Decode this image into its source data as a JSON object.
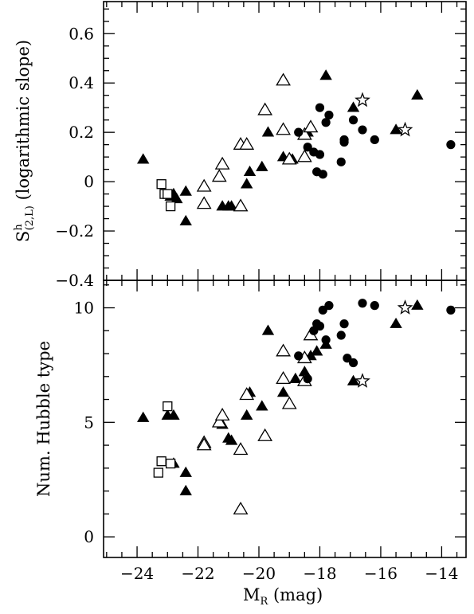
{
  "chart_data": {
    "type": "scatter",
    "shared_x": {
      "label": "M",
      "label_sub": "R",
      "label_unit": " (mag)",
      "range": [
        -25.1,
        -13.2
      ],
      "ticks": [
        -24,
        -22,
        -20,
        -18,
        -16,
        -14
      ],
      "tick_labels": [
        "−24",
        "−22",
        "−20",
        "−18",
        "−16",
        "−14"
      ]
    },
    "panels": [
      {
        "ylabel_main": "S",
        "ylabel_sup": "h",
        "ylabel_sub": "(2,L)",
        "ylabel_rest": " (logarithmic slope)",
        "yrange": [
          -0.4,
          0.73
        ],
        "yticks": [
          -0.4,
          -0.2,
          0,
          0.2,
          0.4,
          0.6
        ],
        "ytick_labels": [
          "−0.4",
          "−0.2",
          "0",
          "0.2",
          "0.4",
          "0.6"
        ],
        "series": [
          {
            "marker": "filled-triangle",
            "points": [
              [
                -23.8,
                0.09
              ],
              [
                -22.8,
                -0.05
              ],
              [
                -22.9,
                -0.06
              ],
              [
                -22.7,
                -0.07
              ],
              [
                -22.4,
                -0.04
              ],
              [
                -22.4,
                -0.16
              ],
              [
                -21.2,
                -0.1
              ],
              [
                -21.0,
                -0.1
              ],
              [
                -20.9,
                -0.1
              ],
              [
                -20.4,
                -0.01
              ],
              [
                -20.3,
                0.04
              ],
              [
                -19.9,
                0.06
              ],
              [
                -19.7,
                0.2
              ],
              [
                -19.2,
                0.1
              ],
              [
                -18.9,
                0.09
              ],
              [
                -18.4,
                0.2
              ],
              [
                -17.8,
                0.43
              ],
              [
                -16.9,
                0.3
              ],
              [
                -15.5,
                0.21
              ],
              [
                -14.8,
                0.35
              ]
            ]
          },
          {
            "marker": "open-triangle",
            "points": [
              [
                -21.8,
                -0.02
              ],
              [
                -21.8,
                -0.09
              ],
              [
                -21.3,
                0.02
              ],
              [
                -21.2,
                0.07
              ],
              [
                -20.6,
                0.15
              ],
              [
                -20.4,
                0.15
              ],
              [
                -20.6,
                -0.1
              ],
              [
                -19.8,
                0.29
              ],
              [
                -19.2,
                0.21
              ],
              [
                -19.2,
                0.41
              ],
              [
                -19.0,
                0.09
              ],
              [
                -18.5,
                0.1
              ],
              [
                -18.5,
                0.19
              ],
              [
                -18.3,
                0.22
              ]
            ]
          },
          {
            "marker": "filled-circle",
            "points": [
              [
                -18.7,
                0.2
              ],
              [
                -18.4,
                0.14
              ],
              [
                -18.2,
                0.12
              ],
              [
                -18.1,
                0.04
              ],
              [
                -18.0,
                0.3
              ],
              [
                -17.9,
                0.03
              ],
              [
                -17.8,
                0.24
              ],
              [
                -17.7,
                0.27
              ],
              [
                -17.3,
                0.08
              ],
              [
                -17.2,
                0.17
              ],
              [
                -17.2,
                0.16
              ],
              [
                -16.9,
                0.25
              ],
              [
                -16.6,
                0.21
              ],
              [
                -16.2,
                0.17
              ],
              [
                -13.7,
                0.15
              ],
              [
                -18.0,
                0.11
              ]
            ]
          },
          {
            "marker": "open-square",
            "points": [
              [
                -23.2,
                -0.01
              ],
              [
                -23.1,
                -0.05
              ],
              [
                -23.0,
                -0.05
              ],
              [
                -22.9,
                -0.1
              ]
            ]
          },
          {
            "marker": "open-star",
            "points": [
              [
                -16.6,
                0.33
              ],
              [
                -15.2,
                0.21
              ]
            ]
          }
        ]
      },
      {
        "ylabel": "Num. Hubble type",
        "yrange": [
          -0.9,
          11.2
        ],
        "yticks": [
          0,
          5,
          10
        ],
        "ytick_labels": [
          "0",
          "5",
          "10"
        ],
        "series": [
          {
            "marker": "filled-triangle",
            "points": [
              [
                -23.8,
                5.2
              ],
              [
                -23.0,
                5.3
              ],
              [
                -22.8,
                5.3
              ],
              [
                -22.8,
                3.2
              ],
              [
                -22.4,
                2.8
              ],
              [
                -22.4,
                2.0
              ],
              [
                -21.2,
                4.9
              ],
              [
                -21.0,
                4.3
              ],
              [
                -20.9,
                4.2
              ],
              [
                -20.4,
                5.3
              ],
              [
                -20.3,
                6.3
              ],
              [
                -19.9,
                5.7
              ],
              [
                -19.7,
                9.0
              ],
              [
                -19.2,
                6.3
              ],
              [
                -18.8,
                6.9
              ],
              [
                -18.5,
                7.2
              ],
              [
                -18.3,
                7.9
              ],
              [
                -18.1,
                8.1
              ],
              [
                -17.8,
                8.4
              ],
              [
                -16.9,
                6.8
              ],
              [
                -15.5,
                9.3
              ],
              [
                -14.8,
                10.1
              ]
            ]
          },
          {
            "marker": "open-triangle",
            "points": [
              [
                -21.8,
                4.1
              ],
              [
                -21.8,
                4.0
              ],
              [
                -21.3,
                5.0
              ],
              [
                -21.2,
                5.3
              ],
              [
                -20.6,
                3.8
              ],
              [
                -20.6,
                1.2
              ],
              [
                -20.4,
                6.2
              ],
              [
                -19.8,
                4.4
              ],
              [
                -19.2,
                6.9
              ],
              [
                -19.2,
                8.1
              ],
              [
                -19.0,
                5.8
              ],
              [
                -18.5,
                6.8
              ],
              [
                -18.5,
                7.8
              ],
              [
                -18.3,
                8.8
              ]
            ]
          },
          {
            "marker": "filled-circle",
            "points": [
              [
                -18.7,
                7.9
              ],
              [
                -18.4,
                6.9
              ],
              [
                -18.1,
                9.3
              ],
              [
                -18.0,
                9.2
              ],
              [
                -17.9,
                9.9
              ],
              [
                -17.7,
                10.1
              ],
              [
                -17.8,
                8.6
              ],
              [
                -17.3,
                8.8
              ],
              [
                -17.2,
                9.3
              ],
              [
                -17.1,
                7.8
              ],
              [
                -16.9,
                7.6
              ],
              [
                -16.6,
                10.2
              ],
              [
                -16.2,
                10.1
              ],
              [
                -13.7,
                9.9
              ],
              [
                -18.2,
                9.0
              ]
            ]
          },
          {
            "marker": "open-square",
            "points": [
              [
                -23.3,
                2.8
              ],
              [
                -23.2,
                3.3
              ],
              [
                -22.9,
                3.2
              ],
              [
                -23.0,
                5.7
              ]
            ]
          },
          {
            "marker": "open-star",
            "points": [
              [
                -16.6,
                6.8
              ],
              [
                -15.2,
                10.0
              ]
            ]
          }
        ]
      }
    ]
  }
}
